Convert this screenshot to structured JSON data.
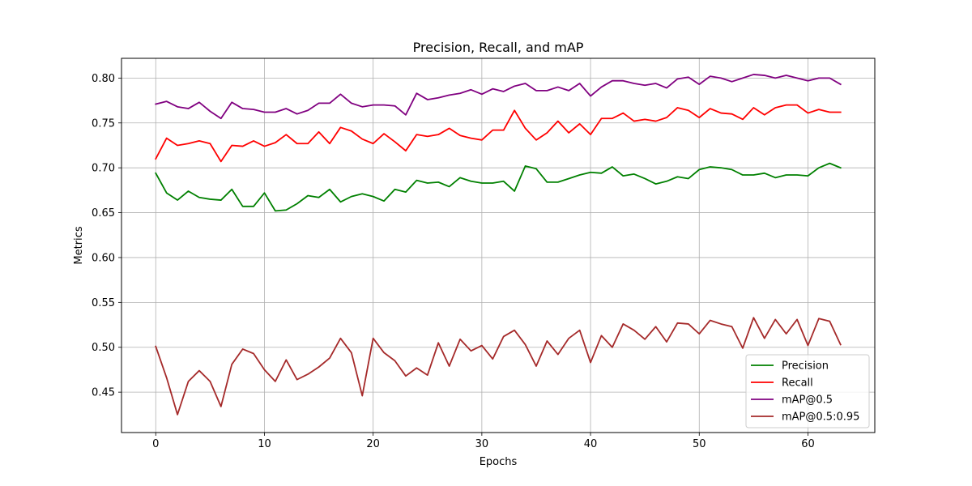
{
  "chart_data": {
    "type": "line",
    "title": "Precision, Recall, and mAP",
    "xlabel": "Epochs",
    "ylabel": "Metrics",
    "xlim": [
      -3.15,
      66.15
    ],
    "ylim": [
      0.405,
      0.822
    ],
    "xticks": [
      0,
      10,
      20,
      30,
      40,
      50,
      60
    ],
    "yticks": [
      0.45,
      0.5,
      0.55,
      0.6,
      0.65,
      0.7,
      0.75,
      0.8
    ],
    "ytick_labels": [
      "0.45",
      "0.50",
      "0.55",
      "0.60",
      "0.65",
      "0.70",
      "0.75",
      "0.80"
    ],
    "grid": true,
    "legend_position": "lower-right",
    "x": [
      0,
      1,
      2,
      3,
      4,
      5,
      6,
      7,
      8,
      9,
      10,
      11,
      12,
      13,
      14,
      15,
      16,
      17,
      18,
      19,
      20,
      21,
      22,
      23,
      24,
      25,
      26,
      27,
      28,
      29,
      30,
      31,
      32,
      33,
      34,
      35,
      36,
      37,
      38,
      39,
      40,
      41,
      42,
      43,
      44,
      45,
      46,
      47,
      48,
      49,
      50,
      51,
      52,
      53,
      54,
      55,
      56,
      57,
      58,
      59,
      60,
      61,
      62,
      63
    ],
    "series": [
      {
        "name": "Precision",
        "color": "#008000",
        "values": [
          0.694,
          0.672,
          0.664,
          0.674,
          0.667,
          0.665,
          0.664,
          0.676,
          0.657,
          0.657,
          0.672,
          0.652,
          0.653,
          0.66,
          0.669,
          0.667,
          0.676,
          0.662,
          0.668,
          0.671,
          0.668,
          0.663,
          0.676,
          0.673,
          0.686,
          0.683,
          0.684,
          0.679,
          0.689,
          0.685,
          0.683,
          0.683,
          0.685,
          0.674,
          0.702,
          0.699,
          0.684,
          0.684,
          0.688,
          0.692,
          0.695,
          0.694,
          0.701,
          0.691,
          0.693,
          0.688,
          0.682,
          0.685,
          0.69,
          0.688,
          0.698,
          0.701,
          0.7,
          0.698,
          0.692,
          0.692,
          0.694,
          0.689,
          0.692,
          0.692,
          0.691,
          0.7,
          0.705,
          0.7
        ]
      },
      {
        "name": "Recall",
        "color": "#ff0000",
        "values": [
          0.71,
          0.733,
          0.725,
          0.727,
          0.73,
          0.727,
          0.707,
          0.725,
          0.724,
          0.73,
          0.724,
          0.728,
          0.737,
          0.727,
          0.727,
          0.74,
          0.727,
          0.745,
          0.741,
          0.732,
          0.727,
          0.738,
          0.729,
          0.719,
          0.737,
          0.735,
          0.737,
          0.744,
          0.736,
          0.733,
          0.731,
          0.742,
          0.742,
          0.764,
          0.744,
          0.731,
          0.739,
          0.752,
          0.739,
          0.749,
          0.737,
          0.755,
          0.755,
          0.761,
          0.752,
          0.754,
          0.752,
          0.756,
          0.767,
          0.764,
          0.756,
          0.766,
          0.761,
          0.76,
          0.754,
          0.767,
          0.759,
          0.767,
          0.77,
          0.77,
          0.761,
          0.765,
          0.762,
          0.762
        ]
      },
      {
        "name": "mAP@0.5",
        "color": "#800080",
        "values": [
          0.771,
          0.774,
          0.768,
          0.766,
          0.773,
          0.763,
          0.755,
          0.773,
          0.766,
          0.765,
          0.762,
          0.762,
          0.766,
          0.76,
          0.764,
          0.772,
          0.772,
          0.782,
          0.772,
          0.768,
          0.77,
          0.77,
          0.769,
          0.759,
          0.783,
          0.776,
          0.778,
          0.781,
          0.783,
          0.787,
          0.782,
          0.788,
          0.785,
          0.791,
          0.794,
          0.786,
          0.786,
          0.79,
          0.786,
          0.794,
          0.78,
          0.79,
          0.797,
          0.797,
          0.794,
          0.792,
          0.794,
          0.789,
          0.799,
          0.801,
          0.793,
          0.802,
          0.8,
          0.796,
          0.8,
          0.804,
          0.803,
          0.8,
          0.803,
          0.8,
          0.797,
          0.8,
          0.8,
          0.793
        ]
      },
      {
        "name": "mAP@0.5:0.95",
        "color": "#a52a2a",
        "values": [
          0.501,
          0.466,
          0.425,
          0.462,
          0.474,
          0.462,
          0.434,
          0.481,
          0.498,
          0.493,
          0.475,
          0.462,
          0.486,
          0.464,
          0.47,
          0.478,
          0.488,
          0.51,
          0.494,
          0.446,
          0.51,
          0.494,
          0.485,
          0.468,
          0.477,
          0.469,
          0.505,
          0.479,
          0.509,
          0.496,
          0.502,
          0.487,
          0.512,
          0.519,
          0.503,
          0.479,
          0.507,
          0.492,
          0.51,
          0.519,
          0.483,
          0.513,
          0.5,
          0.526,
          0.519,
          0.509,
          0.523,
          0.506,
          0.527,
          0.526,
          0.515,
          0.53,
          0.526,
          0.523,
          0.499,
          0.533,
          0.51,
          0.531,
          0.515,
          0.531,
          0.502,
          0.532,
          0.529,
          0.503
        ]
      }
    ]
  }
}
